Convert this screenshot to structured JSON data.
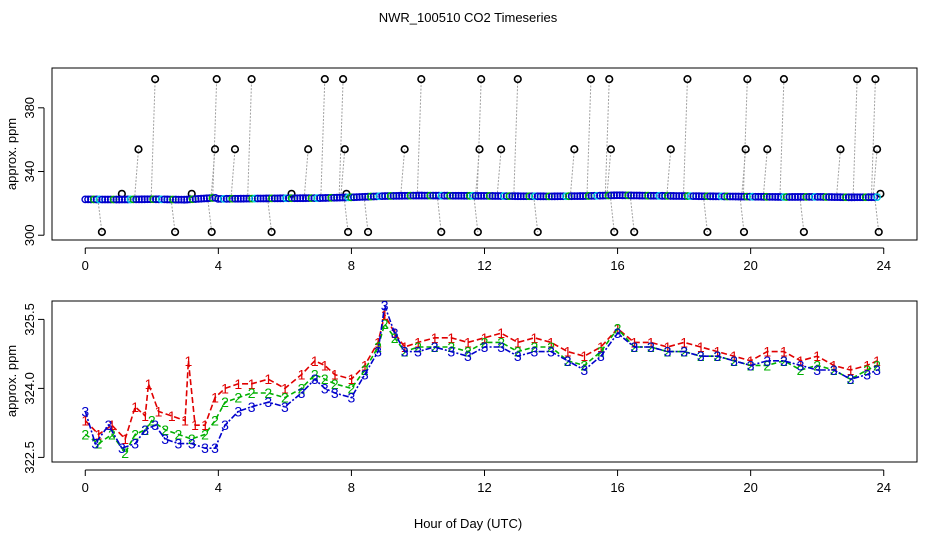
{
  "title": "NWR_100510  CO2 Timeseries",
  "xlabel": "Hour of Day (UTC)",
  "colors": {
    "cycle": "#000000",
    "line1": "#e00000",
    "line2": "#00b000",
    "line3": "#0000cc",
    "cyan": "#00c8e0",
    "connector": "#a0a0a0"
  },
  "chart_data": [
    {
      "type": "scatter",
      "name": "top-panel",
      "ylabel": "approx. ppm",
      "xlim": [
        -1,
        25
      ],
      "ylim": [
        297,
        405
      ],
      "xticks": [
        "0",
        "4",
        "8",
        "12",
        "16",
        "20",
        "24"
      ],
      "yticks": [
        "300",
        "340",
        "380"
      ],
      "baseline": [
        [
          0,
          322.5
        ],
        [
          1,
          322.4
        ],
        [
          2,
          322.6
        ],
        [
          3,
          322.3
        ],
        [
          3.9,
          323.5
        ],
        [
          4,
          322.8
        ],
        [
          5,
          323.0
        ],
        [
          6,
          323.2
        ],
        [
          7,
          323.3
        ],
        [
          8,
          323.8
        ],
        [
          9,
          324.6
        ],
        [
          10,
          324.9
        ],
        [
          11,
          324.8
        ],
        [
          12,
          324.7
        ],
        [
          13,
          324.5
        ],
        [
          14,
          324.4
        ],
        [
          15,
          324.6
        ],
        [
          16,
          325.1
        ],
        [
          17,
          324.8
        ],
        [
          18,
          324.6
        ],
        [
          19,
          324.4
        ],
        [
          20,
          324.2
        ],
        [
          21,
          324.0
        ],
        [
          22,
          324.1
        ],
        [
          23,
          323.8
        ],
        [
          23.8,
          323.9
        ]
      ],
      "cycle_points": [
        {
          "x": 0.5,
          "y": 302
        },
        {
          "x": 1.1,
          "y": 326
        },
        {
          "x": 1.6,
          "y": 354
        },
        {
          "x": 2.1,
          "y": 398
        },
        {
          "x": 2.7,
          "y": 302
        },
        {
          "x": 3.2,
          "y": 326
        },
        {
          "x": 3.8,
          "y": 302
        },
        {
          "x": 3.9,
          "y": 354
        },
        {
          "x": 3.95,
          "y": 398
        },
        {
          "x": 4.5,
          "y": 354
        },
        {
          "x": 5.0,
          "y": 398
        },
        {
          "x": 5.6,
          "y": 302
        },
        {
          "x": 6.2,
          "y": 326
        },
        {
          "x": 6.7,
          "y": 354
        },
        {
          "x": 7.2,
          "y": 398
        },
        {
          "x": 7.75,
          "y": 398
        },
        {
          "x": 7.8,
          "y": 354
        },
        {
          "x": 7.85,
          "y": 326
        },
        {
          "x": 7.9,
          "y": 302
        },
        {
          "x": 8.5,
          "y": 302
        },
        {
          "x": 9.6,
          "y": 354
        },
        {
          "x": 10.1,
          "y": 398
        },
        {
          "x": 10.7,
          "y": 302
        },
        {
          "x": 11.8,
          "y": 302
        },
        {
          "x": 11.85,
          "y": 354
        },
        {
          "x": 11.9,
          "y": 398
        },
        {
          "x": 12.5,
          "y": 354
        },
        {
          "x": 13.0,
          "y": 398
        },
        {
          "x": 13.6,
          "y": 302
        },
        {
          "x": 14.7,
          "y": 354
        },
        {
          "x": 15.2,
          "y": 398
        },
        {
          "x": 15.75,
          "y": 398
        },
        {
          "x": 15.8,
          "y": 354
        },
        {
          "x": 15.9,
          "y": 302
        },
        {
          "x": 16.5,
          "y": 302
        },
        {
          "x": 17.6,
          "y": 354
        },
        {
          "x": 18.1,
          "y": 398
        },
        {
          "x": 18.7,
          "y": 302
        },
        {
          "x": 19.8,
          "y": 302
        },
        {
          "x": 19.85,
          "y": 354
        },
        {
          "x": 19.9,
          "y": 398
        },
        {
          "x": 20.5,
          "y": 354
        },
        {
          "x": 21.0,
          "y": 398
        },
        {
          "x": 21.6,
          "y": 302
        },
        {
          "x": 22.7,
          "y": 354
        },
        {
          "x": 23.2,
          "y": 398
        },
        {
          "x": 23.75,
          "y": 398
        },
        {
          "x": 23.8,
          "y": 354
        },
        {
          "x": 23.85,
          "y": 302
        },
        {
          "x": 23.9,
          "y": 326
        }
      ]
    },
    {
      "type": "line",
      "name": "bottom-panel",
      "ylabel": "approx. ppm",
      "xlim": [
        -1,
        25
      ],
      "ylim": [
        322.4,
        325.9
      ],
      "xticks": [
        "0",
        "4",
        "8",
        "12",
        "16",
        "20",
        "24"
      ],
      "yticks": [
        "322.5",
        "324.0",
        "325.5"
      ],
      "series": [
        {
          "name": "1",
          "marker": "1",
          "points": [
            [
              0,
              323.3
            ],
            [
              0.4,
              323.0
            ],
            [
              0.8,
              323.2
            ],
            [
              1.2,
              322.9
            ],
            [
              1.5,
              323.6
            ],
            [
              1.8,
              323.4
            ],
            [
              1.9,
              324.1
            ],
            [
              2.2,
              323.5
            ],
            [
              2.6,
              323.4
            ],
            [
              3.0,
              323.3
            ],
            [
              3.1,
              324.6
            ],
            [
              3.3,
              323.2
            ],
            [
              3.6,
              323.2
            ],
            [
              3.9,
              323.8
            ],
            [
              4.2,
              324.0
            ],
            [
              4.6,
              324.1
            ],
            [
              5.0,
              324.1
            ],
            [
              5.5,
              324.2
            ],
            [
              6.0,
              324.0
            ],
            [
              6.5,
              324.3
            ],
            [
              6.9,
              324.6
            ],
            [
              7.2,
              324.5
            ],
            [
              7.5,
              324.3
            ],
            [
              8.0,
              324.2
            ],
            [
              8.4,
              324.5
            ],
            [
              8.8,
              325.0
            ],
            [
              9.0,
              325.6
            ],
            [
              9.3,
              325.2
            ],
            [
              9.6,
              324.9
            ],
            [
              10.0,
              325.0
            ],
            [
              10.5,
              325.1
            ],
            [
              11.0,
              325.1
            ],
            [
              11.5,
              325.0
            ],
            [
              12.0,
              325.1
            ],
            [
              12.5,
              325.2
            ],
            [
              13.0,
              325.0
            ],
            [
              13.5,
              325.1
            ],
            [
              14.0,
              325.0
            ],
            [
              14.5,
              324.8
            ],
            [
              15.0,
              324.7
            ],
            [
              15.5,
              324.9
            ],
            [
              16.0,
              325.3
            ],
            [
              16.5,
              325.0
            ],
            [
              17.0,
              325.0
            ],
            [
              17.5,
              324.9
            ],
            [
              18.0,
              325.0
            ],
            [
              18.5,
              324.9
            ],
            [
              19.0,
              324.8
            ],
            [
              19.5,
              324.7
            ],
            [
              20.0,
              324.6
            ],
            [
              20.5,
              324.8
            ],
            [
              21.0,
              324.8
            ],
            [
              21.5,
              324.6
            ],
            [
              22.0,
              324.7
            ],
            [
              22.5,
              324.5
            ],
            [
              23.0,
              324.4
            ],
            [
              23.5,
              324.5
            ],
            [
              23.8,
              324.6
            ]
          ]
        },
        {
          "name": "2",
          "marker": "2",
          "points": [
            [
              0,
              323.0
            ],
            [
              0.4,
              322.8
            ],
            [
              0.8,
              323.0
            ],
            [
              1.2,
              322.6
            ],
            [
              1.5,
              323.0
            ],
            [
              1.8,
              323.1
            ],
            [
              2.0,
              323.3
            ],
            [
              2.4,
              323.1
            ],
            [
              2.8,
              323.0
            ],
            [
              3.2,
              322.9
            ],
            [
              3.6,
              323.0
            ],
            [
              3.9,
              323.3
            ],
            [
              4.2,
              323.7
            ],
            [
              4.6,
              323.8
            ],
            [
              5.0,
              323.9
            ],
            [
              5.5,
              323.9
            ],
            [
              6.0,
              323.8
            ],
            [
              6.5,
              324.0
            ],
            [
              6.9,
              324.3
            ],
            [
              7.2,
              324.2
            ],
            [
              7.5,
              324.1
            ],
            [
              8.0,
              324.0
            ],
            [
              8.4,
              324.4
            ],
            [
              8.8,
              324.9
            ],
            [
              9.0,
              325.4
            ],
            [
              9.3,
              325.1
            ],
            [
              9.6,
              324.8
            ],
            [
              10.0,
              324.9
            ],
            [
              10.5,
              324.9
            ],
            [
              11.0,
              324.9
            ],
            [
              11.5,
              324.8
            ],
            [
              12.0,
              325.0
            ],
            [
              12.5,
              325.0
            ],
            [
              13.0,
              324.8
            ],
            [
              13.5,
              324.9
            ],
            [
              14.0,
              324.9
            ],
            [
              14.5,
              324.6
            ],
            [
              15.0,
              324.5
            ],
            [
              15.5,
              324.8
            ],
            [
              16.0,
              325.3
            ],
            [
              16.5,
              324.9
            ],
            [
              17.0,
              324.9
            ],
            [
              17.5,
              324.8
            ],
            [
              18.0,
              324.8
            ],
            [
              18.5,
              324.7
            ],
            [
              19.0,
              324.7
            ],
            [
              19.5,
              324.6
            ],
            [
              20.0,
              324.5
            ],
            [
              20.5,
              324.5
            ],
            [
              21.0,
              324.6
            ],
            [
              21.5,
              324.4
            ],
            [
              22.0,
              324.5
            ],
            [
              22.5,
              324.4
            ],
            [
              23.0,
              324.2
            ],
            [
              23.5,
              324.4
            ],
            [
              23.8,
              324.5
            ]
          ]
        },
        {
          "name": "3",
          "marker": "3",
          "points": [
            [
              0,
              323.5
            ],
            [
              0.3,
              322.8
            ],
            [
              0.7,
              323.2
            ],
            [
              1.1,
              322.7
            ],
            [
              1.5,
              322.8
            ],
            [
              1.8,
              323.1
            ],
            [
              2.1,
              323.2
            ],
            [
              2.4,
              322.9
            ],
            [
              2.8,
              322.8
            ],
            [
              3.2,
              322.8
            ],
            [
              3.6,
              322.7
            ],
            [
              3.9,
              322.7
            ],
            [
              4.2,
              323.2
            ],
            [
              4.6,
              323.5
            ],
            [
              5.0,
              323.6
            ],
            [
              5.5,
              323.7
            ],
            [
              6.0,
              323.6
            ],
            [
              6.5,
              323.9
            ],
            [
              6.9,
              324.2
            ],
            [
              7.2,
              324.0
            ],
            [
              7.5,
              323.9
            ],
            [
              8.0,
              323.8
            ],
            [
              8.4,
              324.3
            ],
            [
              8.8,
              324.8
            ],
            [
              9.0,
              325.8
            ],
            [
              9.3,
              325.2
            ],
            [
              9.6,
              324.8
            ],
            [
              10.0,
              324.8
            ],
            [
              10.5,
              324.9
            ],
            [
              11.0,
              324.8
            ],
            [
              11.5,
              324.7
            ],
            [
              12.0,
              324.9
            ],
            [
              12.5,
              324.9
            ],
            [
              13.0,
              324.7
            ],
            [
              13.5,
              324.8
            ],
            [
              14.0,
              324.8
            ],
            [
              14.5,
              324.6
            ],
            [
              15.0,
              324.4
            ],
            [
              15.5,
              324.7
            ],
            [
              16.0,
              325.2
            ],
            [
              16.5,
              324.9
            ],
            [
              17.0,
              324.9
            ],
            [
              17.5,
              324.8
            ],
            [
              18.0,
              324.8
            ],
            [
              18.5,
              324.7
            ],
            [
              19.0,
              324.7
            ],
            [
              19.5,
              324.6
            ],
            [
              20.0,
              324.5
            ],
            [
              20.5,
              324.6
            ],
            [
              21.0,
              324.6
            ],
            [
              21.5,
              324.5
            ],
            [
              22.0,
              324.4
            ],
            [
              22.5,
              324.4
            ],
            [
              23.0,
              324.2
            ],
            [
              23.5,
              324.3
            ],
            [
              23.8,
              324.4
            ]
          ]
        }
      ]
    }
  ]
}
